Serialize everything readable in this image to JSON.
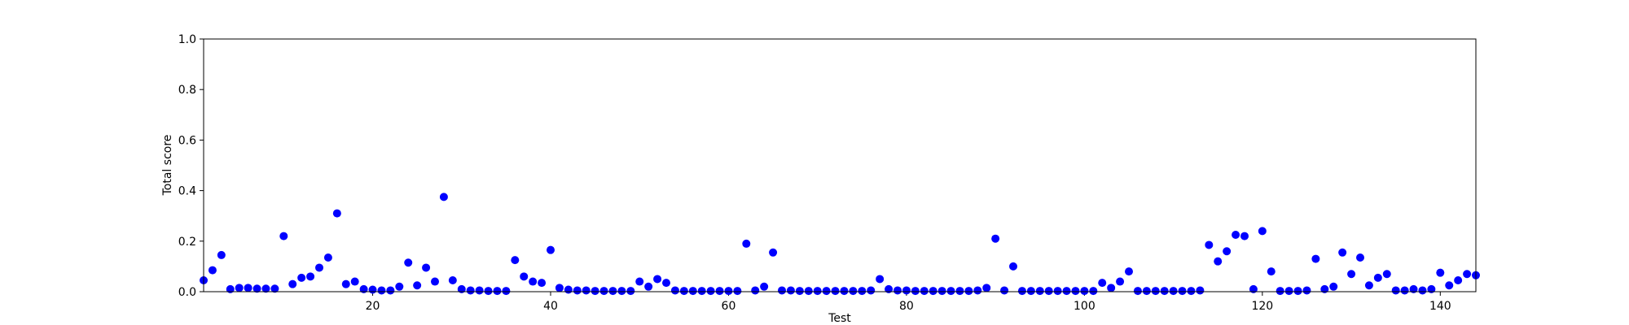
{
  "chart_data": {
    "type": "scatter",
    "xlabel": "Test",
    "ylabel": "Total score",
    "xlim": [
      1,
      144
    ],
    "ylim": [
      0,
      1.0
    ],
    "x_ticks": [
      20,
      40,
      60,
      80,
      100,
      120,
      140
    ],
    "x_tick_labels": [
      "20",
      "40",
      "60",
      "80",
      "100",
      "120",
      "140"
    ],
    "y_ticks": [
      0,
      0.2,
      0.4,
      0.6,
      0.8,
      1.0
    ],
    "y_tick_labels": [
      "0.0",
      "0.2",
      "0.4",
      "0.6",
      "0.8",
      "1.0"
    ],
    "grid": false,
    "marker_color": "#0000ff",
    "x": [
      1,
      2,
      3,
      4,
      5,
      6,
      7,
      8,
      9,
      10,
      11,
      12,
      13,
      14,
      15,
      16,
      17,
      18,
      19,
      20,
      21,
      22,
      23,
      24,
      25,
      26,
      27,
      28,
      29,
      30,
      31,
      32,
      33,
      34,
      35,
      36,
      37,
      38,
      39,
      40,
      41,
      42,
      43,
      44,
      45,
      46,
      47,
      48,
      49,
      50,
      51,
      52,
      53,
      54,
      55,
      56,
      57,
      58,
      59,
      60,
      61,
      62,
      63,
      64,
      65,
      66,
      67,
      68,
      69,
      70,
      71,
      72,
      73,
      74,
      75,
      76,
      77,
      78,
      79,
      80,
      81,
      82,
      83,
      84,
      85,
      86,
      87,
      88,
      89,
      90,
      91,
      92,
      93,
      94,
      95,
      96,
      97,
      98,
      99,
      100,
      101,
      102,
      103,
      104,
      105,
      106,
      107,
      108,
      109,
      110,
      111,
      112,
      113,
      114,
      115,
      116,
      117,
      118,
      119,
      120,
      121,
      122,
      123,
      124,
      125,
      126,
      127,
      128,
      129,
      130,
      131,
      132,
      133,
      134,
      135,
      136,
      137,
      138,
      139,
      140,
      141,
      142,
      143,
      144
    ],
    "y": [
      0.045,
      0.085,
      0.145,
      0.01,
      0.015,
      0.015,
      0.012,
      0.012,
      0.012,
      0.22,
      0.03,
      0.055,
      0.06,
      0.095,
      0.135,
      0.31,
      0.03,
      0.04,
      0.01,
      0.008,
      0.005,
      0.005,
      0.02,
      0.115,
      0.025,
      0.095,
      0.04,
      0.375,
      0.045,
      0.01,
      0.005,
      0.005,
      0.003,
      0.003,
      0.003,
      0.125,
      0.06,
      0.04,
      0.035,
      0.165,
      0.015,
      0.008,
      0.005,
      0.005,
      0.003,
      0.003,
      0.003,
      0.003,
      0.003,
      0.04,
      0.02,
      0.05,
      0.035,
      0.005,
      0.003,
      0.003,
      0.003,
      0.003,
      0.003,
      0.003,
      0.003,
      0.19,
      0.005,
      0.02,
      0.155,
      0.005,
      0.005,
      0.003,
      0.003,
      0.003,
      0.003,
      0.003,
      0.003,
      0.003,
      0.003,
      0.005,
      0.05,
      0.01,
      0.005,
      0.005,
      0.003,
      0.003,
      0.003,
      0.003,
      0.003,
      0.003,
      0.003,
      0.005,
      0.015,
      0.21,
      0.005,
      0.1,
      0.003,
      0.003,
      0.003,
      0.003,
      0.003,
      0.003,
      0.003,
      0.003,
      0.003,
      0.035,
      0.015,
      0.04,
      0.08,
      0.003,
      0.003,
      0.003,
      0.003,
      0.003,
      0.003,
      0.003,
      0.005,
      0.185,
      0.12,
      0.16,
      0.225,
      0.22,
      0.01,
      0.24,
      0.08,
      0.003,
      0.003,
      0.003,
      0.005,
      0.13,
      0.01,
      0.02,
      0.155,
      0.07,
      0.135,
      0.025,
      0.055,
      0.07,
      0.005,
      0.005,
      0.01,
      0.005,
      0.01,
      0.075,
      0.025,
      0.045,
      0.07,
      0.065
    ]
  }
}
